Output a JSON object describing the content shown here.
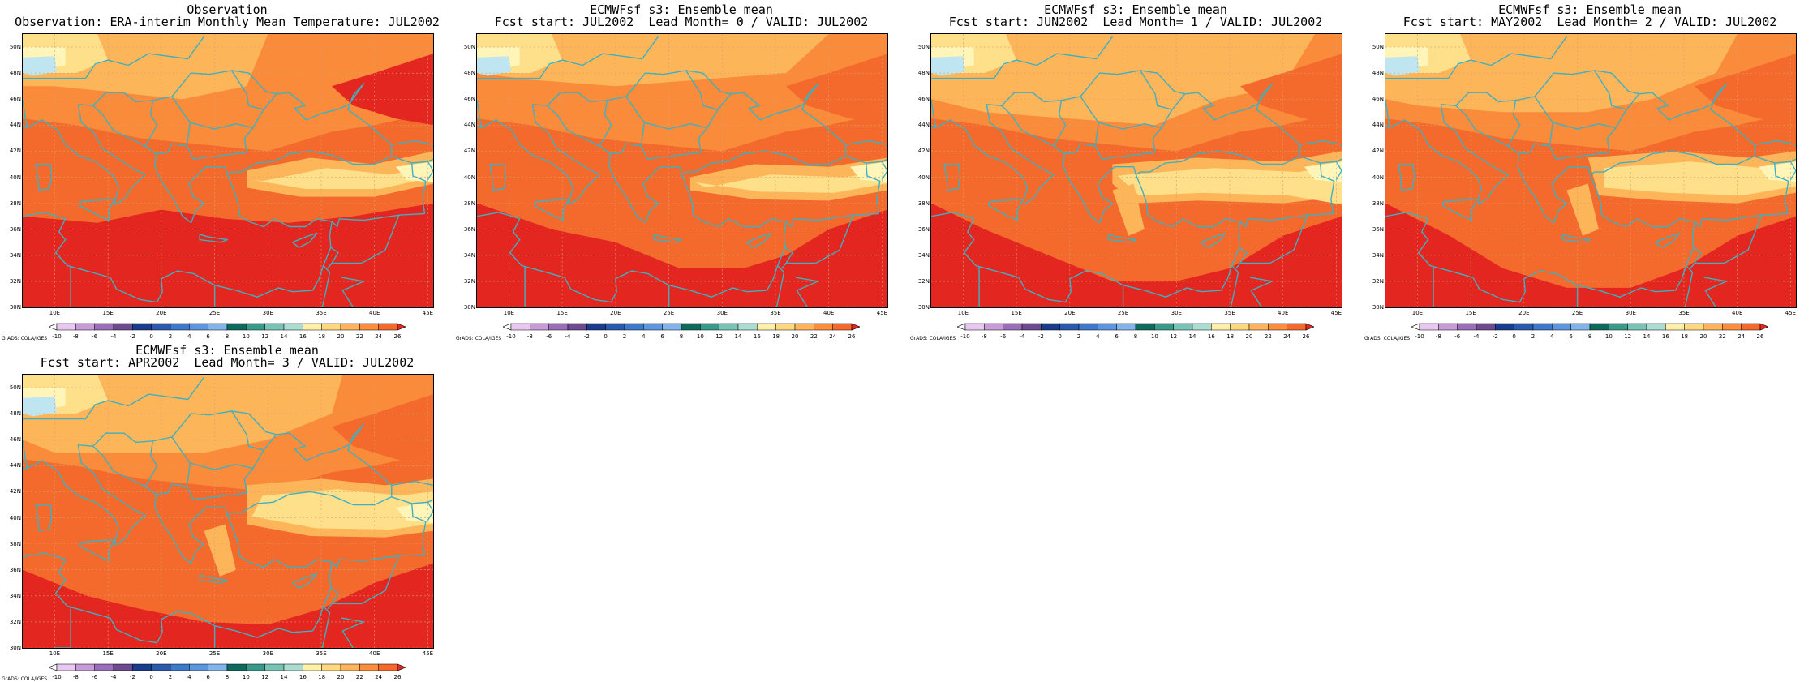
{
  "panels": [
    {
      "id": "obs",
      "title_line1": "Observation",
      "title_line2": "Observation: ERA-interim Monthly Mean Temperature: JUL2002",
      "col": 0,
      "row": 0,
      "variant": 0
    },
    {
      "id": "lead0",
      "title_line1": "ECMWFsf s3: Ensemble mean",
      "title_line2": "Fcst start: JUL2002  Lead Month= 0 / VALID: JUL2002",
      "col": 1,
      "row": 0,
      "variant": 1
    },
    {
      "id": "lead1",
      "title_line1": "ECMWFsf s3: Ensemble mean",
      "title_line2": "Fcst start: JUN2002  Lead Month= 1 / VALID: JUL2002",
      "col": 2,
      "row": 0,
      "variant": 2
    },
    {
      "id": "lead2",
      "title_line1": "ECMWFsf s3: Ensemble mean",
      "title_line2": "Fcst start: MAY2002  Lead Month= 2 / VALID: JUL2002",
      "col": 3,
      "row": 0,
      "variant": 3
    },
    {
      "id": "lead3",
      "title_line1": "ECMWFsf s3: Ensemble mean",
      "title_line2": "Fcst start: APR2002  Lead Month= 3 / VALID: JUL2002",
      "col": 0,
      "row": 1,
      "variant": 4
    }
  ],
  "lat_labels": [
    "50N",
    "48N",
    "46N",
    "44N",
    "42N",
    "40N",
    "38N",
    "36N",
    "34N",
    "32N",
    "30N"
  ],
  "lon_labels": [
    "10E",
    "15E",
    "20E",
    "25E",
    "30E",
    "35E",
    "40E",
    "45E"
  ],
  "map_extent": {
    "lon": [
      7,
      45.5
    ],
    "lat": [
      30,
      51
    ]
  },
  "credit": "GrADS: COLA/IGES",
  "colorbar": {
    "levels": [
      "-10",
      "-8",
      "-6",
      "-4",
      "-2",
      "0",
      "2",
      "4",
      "6",
      "8",
      "10",
      "12",
      "14",
      "16",
      "18",
      "20",
      "22",
      "24",
      "26"
    ],
    "colors": [
      "#ffffff",
      "#e8c8f0",
      "#c89ad8",
      "#9a6eb8",
      "#6e4a8e",
      "#1a3c8c",
      "#2a5aac",
      "#3e78c8",
      "#5c96dc",
      "#82b4ea",
      "#0e6a5c",
      "#3a9a8a",
      "#78c4b4",
      "#aadcd0",
      "#fff0a8",
      "#ffd880",
      "#fdb45c",
      "#f98e3e",
      "#f46a2c",
      "#e32a22"
    ]
  },
  "field_colors": {
    "lt18": "#fff5b8",
    "t18_20": "#ffe08a",
    "t20_22": "#fdb55a",
    "t22_24": "#f98b3a",
    "t24_26": "#f46a2c",
    "gt26": "#e3261f",
    "cold": "#bfe6f0"
  },
  "coastline_color": "#3fb0c0"
}
